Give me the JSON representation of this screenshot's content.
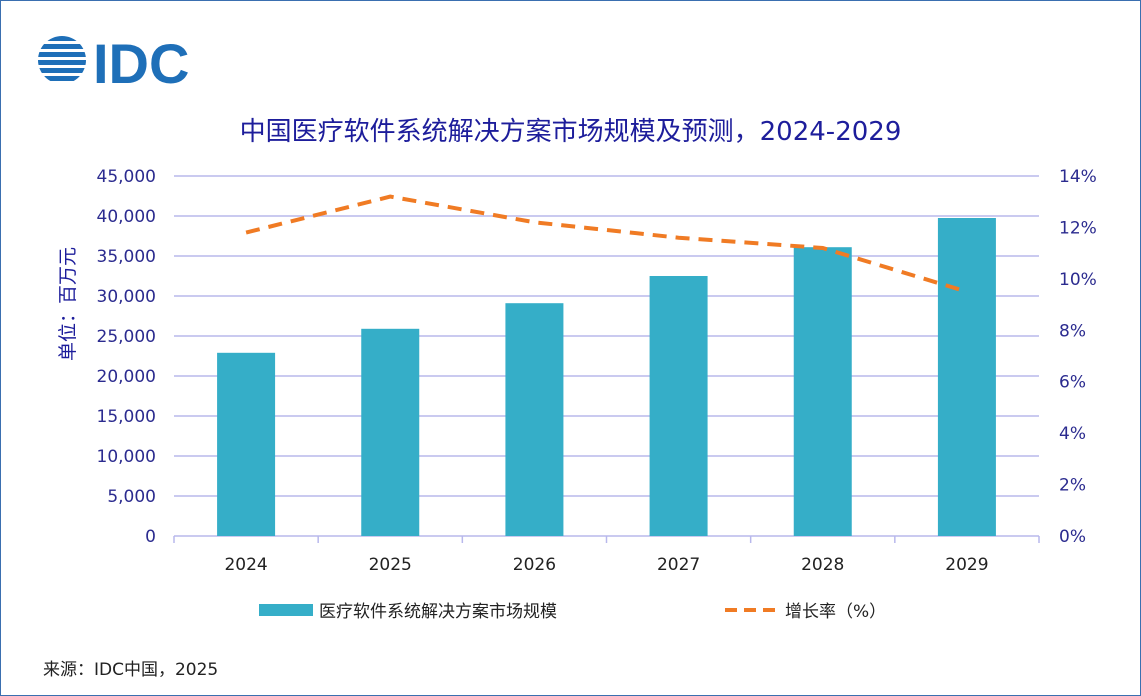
{
  "logo_text": "IDC",
  "chart_data": {
    "type": "bar+line",
    "title": "中国医疗软件系统解决方案市场规模及预测，2024-2029",
    "ylabel": "单位：百万元",
    "categories": [
      "2024",
      "2025",
      "2026",
      "2027",
      "2028",
      "2029"
    ],
    "y_ticks": [
      "0",
      "5,000",
      "10,000",
      "15,000",
      "20,000",
      "25,000",
      "30,000",
      "35,000",
      "40,000",
      "45,000"
    ],
    "y2_ticks": [
      "0%",
      "2%",
      "4%",
      "6%",
      "8%",
      "10%",
      "12%",
      "14%"
    ],
    "ylim": [
      0,
      45000
    ],
    "y2lim": [
      0,
      14
    ],
    "grid": true,
    "legend_position": "bottom",
    "series": [
      {
        "name": "医疗软件系统解决方案市场规模",
        "type": "bar",
        "axis": "left",
        "values": [
          22900,
          25900,
          29100,
          32500,
          36100,
          39750
        ],
        "color": "#35aec8"
      },
      {
        "name": "增长率（%）",
        "type": "line",
        "axis": "right",
        "dashed": true,
        "values": [
          11.8,
          13.2,
          12.2,
          11.6,
          11.2,
          9.5
        ],
        "color": "#f07b24"
      }
    ]
  },
  "source": "来源：IDC中国，2025"
}
